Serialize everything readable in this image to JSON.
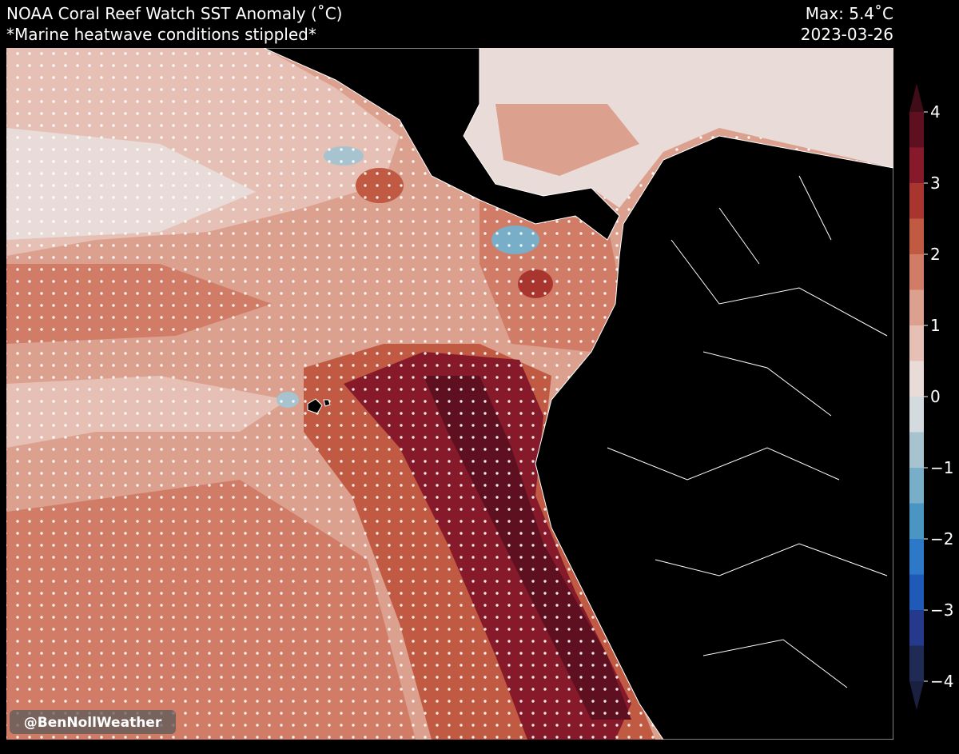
{
  "header": {
    "title": "NOAA Coral Reef Watch SST Anomaly (˚C)",
    "subtitle": "*Marine heatwave conditions stippled*",
    "max": "Max: 5.4˚C",
    "date": "2023-03-26"
  },
  "colorbar": {
    "lim": [
      -4,
      4
    ],
    "ticks": [
      4,
      3,
      2,
      1,
      0,
      {
        "value": -1,
        "label": "−1"
      },
      {
        "value": -2,
        "label": "−2"
      },
      {
        "value": -3,
        "label": "−3"
      },
      {
        "value": -4,
        "label": "−4"
      }
    ],
    "levels": [
      -4,
      -3.5,
      -3,
      -2.5,
      -2,
      -1.5,
      -1,
      -0.5,
      0,
      0.5,
      1,
      1.5,
      2,
      2.5,
      3,
      3.5,
      4
    ],
    "colors": [
      "#1f2a55",
      "#253a8c",
      "#1f5ab8",
      "#2e78c8",
      "#4a95c2",
      "#78aec7",
      "#a6c3cf",
      "#d3dbdf",
      "#e9dcd8",
      "#e6c0b5",
      "#dca08f",
      "#d07c66",
      "#c05a42",
      "#a8352e",
      "#861a2a",
      "#5e1020"
    ],
    "under_color": "#1a2040",
    "over_color": "#3e0d18"
  },
  "watermark": "@BenNollWeather"
}
